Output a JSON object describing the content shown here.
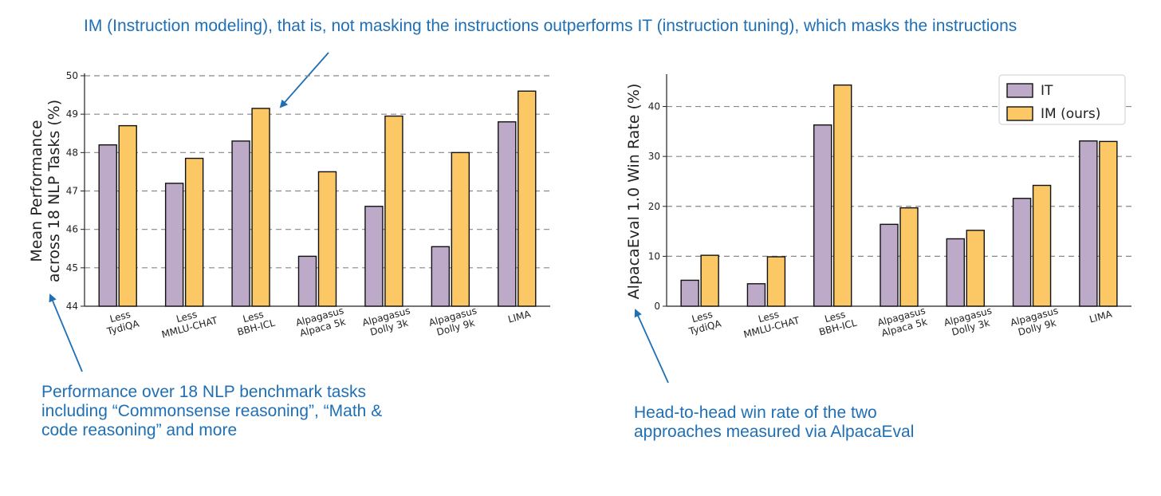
{
  "annotations": {
    "top": "IM (Instruction modeling), that is, not masking the instructions outperforms IT (instruction tuning), which masks the instructions",
    "left": "Performance over 18 NLP benchmark tasks including “Commonsense reasoning”, “Math & code reasoning” and more",
    "right": "Head-to-head win rate of the two approaches measured via AlpacaEval"
  },
  "colors": {
    "annotation": "#1f6fb5",
    "IT": "#bda9c8",
    "IM": "#fbc865",
    "bar_edge": "#111111",
    "grid": "#888888"
  },
  "chart_data": [
    {
      "type": "bar",
      "ylabel_lines": [
        "Mean Performance",
        "across 18 NLP Tasks (%)"
      ],
      "categories": [
        [
          "Less",
          "TydiQA"
        ],
        [
          "Less",
          "MMLU-CHAT"
        ],
        [
          "Less",
          "BBH-ICL"
        ],
        [
          "Alpagasus",
          "Alpaca 5k"
        ],
        [
          "Alpagasus",
          "Dolly 3k"
        ],
        [
          "Alpagasus",
          "Dolly 9k"
        ],
        [
          "LIMA"
        ]
      ],
      "series": [
        {
          "name": "IT",
          "values": [
            48.2,
            47.2,
            48.3,
            45.3,
            46.6,
            45.55,
            48.8
          ]
        },
        {
          "name": "IM (ours)",
          "values": [
            48.7,
            47.85,
            49.15,
            47.5,
            48.95,
            48.0,
            49.6
          ]
        }
      ],
      "ylim": [
        44,
        50
      ],
      "yticks": [
        "44",
        "45",
        "46",
        "47",
        "48",
        "49",
        "50"
      ],
      "grid": "horizontal dashed",
      "legend": "none"
    },
    {
      "type": "bar",
      "ylabel": "AlpacaEval 1.0 Win Rate (%)",
      "categories": [
        [
          "Less",
          "TydiQA"
        ],
        [
          "Less",
          "MMLU-CHAT"
        ],
        [
          "Less",
          "BBH-ICL"
        ],
        [
          "Alpagasus",
          "Alpaca 5k"
        ],
        [
          "Alpagasus",
          "Dolly 3k"
        ],
        [
          "Alpagasus",
          "Dolly 9k"
        ],
        [
          "LIMA"
        ]
      ],
      "series": [
        {
          "name": "IT",
          "values": [
            5.2,
            4.5,
            36.3,
            16.4,
            13.5,
            21.6,
            33.1
          ]
        },
        {
          "name": "IM (ours)",
          "values": [
            10.2,
            9.9,
            44.3,
            19.7,
            15.2,
            24.2,
            33.0
          ]
        }
      ],
      "ylim": [
        0,
        46
      ],
      "yticks": [
        "0",
        "10",
        "20",
        "30",
        "40"
      ],
      "grid": "horizontal dashed",
      "legend": "top-right"
    }
  ]
}
